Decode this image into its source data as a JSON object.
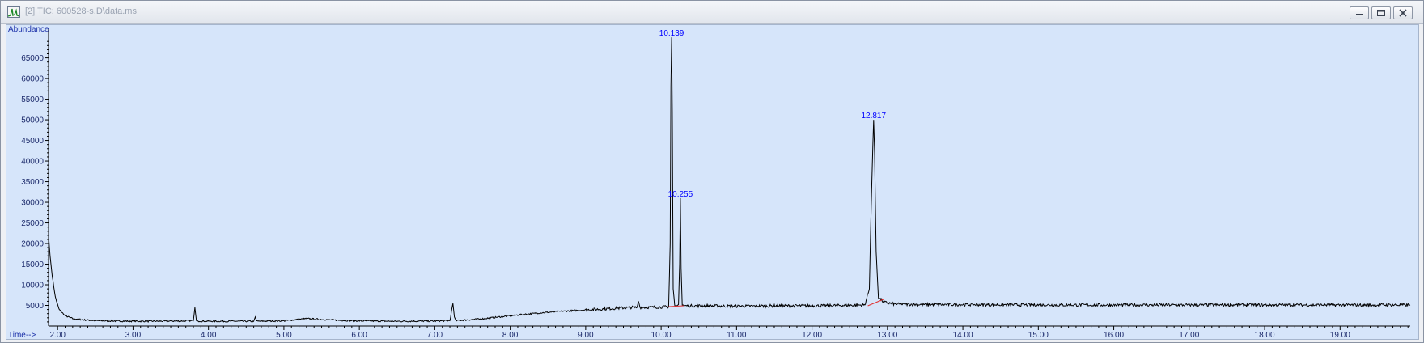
{
  "window": {
    "title": "[2] TIC: 600528-s.D\\data.ms",
    "icons": {
      "app": "chromatogram-app-icon",
      "minimize": "minimize-icon",
      "restore": "restore-icon",
      "close": "close-icon"
    }
  },
  "chart_data": {
    "type": "line",
    "title": "",
    "ylabel": "Abundance",
    "xlabel": "Time-->",
    "xlim": [
      1.88,
      19.93
    ],
    "ylim": [
      0,
      71000
    ],
    "x_ticks": [
      "2.00",
      "3.00",
      "4.00",
      "5.00",
      "6.00",
      "7.00",
      "8.00",
      "9.00",
      "10.00",
      "11.00",
      "12.00",
      "13.00",
      "14.00",
      "15.00",
      "16.00",
      "17.00",
      "18.00",
      "19.00"
    ],
    "y_ticks": [
      "5000",
      "10000",
      "15000",
      "20000",
      "25000",
      "30000",
      "35000",
      "40000",
      "45000",
      "50000",
      "55000",
      "60000",
      "65000"
    ],
    "grid": false,
    "line_color": "#000000",
    "label_color": "#0000ff",
    "integration_color": "#e03030",
    "peak_labels": [
      {
        "label": "10.139",
        "x": 10.139,
        "y": 70000
      },
      {
        "label": "10.255",
        "x": 10.255,
        "y": 31000
      },
      {
        "label": "12.817",
        "x": 12.817,
        "y": 50000
      }
    ],
    "series": [
      {
        "x": [
          1.88,
          1.9,
          1.93,
          1.97,
          2.02,
          2.1,
          2.2,
          2.35,
          2.5,
          2.8,
          3.2,
          3.6,
          3.8,
          3.82,
          3.84,
          3.87,
          4.2,
          4.6,
          4.62,
          4.64,
          5.0,
          5.3,
          5.5,
          5.7,
          6.0,
          6.5,
          7.0,
          7.2,
          7.24,
          7.26,
          7.28,
          7.32,
          7.6,
          8.0,
          8.4,
          8.8,
          9.2,
          9.6,
          9.68,
          9.7,
          9.72,
          10.0,
          10.1,
          10.12,
          10.13,
          10.139,
          10.148,
          10.16,
          10.18,
          10.2,
          10.23,
          10.245,
          10.255,
          10.265,
          10.28,
          10.32,
          10.6,
          11.0,
          11.5,
          12.0,
          12.4,
          12.7,
          12.76,
          12.79,
          12.817,
          12.83,
          12.85,
          12.88,
          12.95,
          13.1,
          13.5,
          14.0,
          15.0,
          16.0,
          17.0,
          18.0,
          19.0,
          19.93
        ],
        "y": [
          22000,
          17000,
          12000,
          7000,
          4000,
          2500,
          1800,
          1500,
          1300,
          1200,
          1150,
          1200,
          1300,
          4500,
          1300,
          1200,
          1150,
          1150,
          2200,
          1150,
          1250,
          1800,
          1600,
          1400,
          1250,
          1150,
          1200,
          1300,
          5500,
          2200,
          1300,
          1350,
          1700,
          2500,
          3200,
          3700,
          4100,
          4500,
          4500,
          6000,
          4500,
          4600,
          4700,
          20000,
          58000,
          70000,
          52000,
          9000,
          5000,
          4800,
          5200,
          15000,
          31000,
          14000,
          5200,
          4900,
          4900,
          4800,
          4900,
          4900,
          5000,
          5100,
          9000,
          33000,
          50000,
          42000,
          18000,
          7000,
          5800,
          5300,
          5200,
          5200,
          5100,
          5100,
          5100,
          5100,
          5100,
          5100
        ]
      }
    ],
    "integration_baselines": [
      {
        "x": [
          10.1,
          10.3
        ],
        "y": [
          4700,
          4900
        ]
      },
      {
        "x": [
          12.74,
          12.95
        ],
        "y": [
          4900,
          6500
        ]
      }
    ]
  }
}
